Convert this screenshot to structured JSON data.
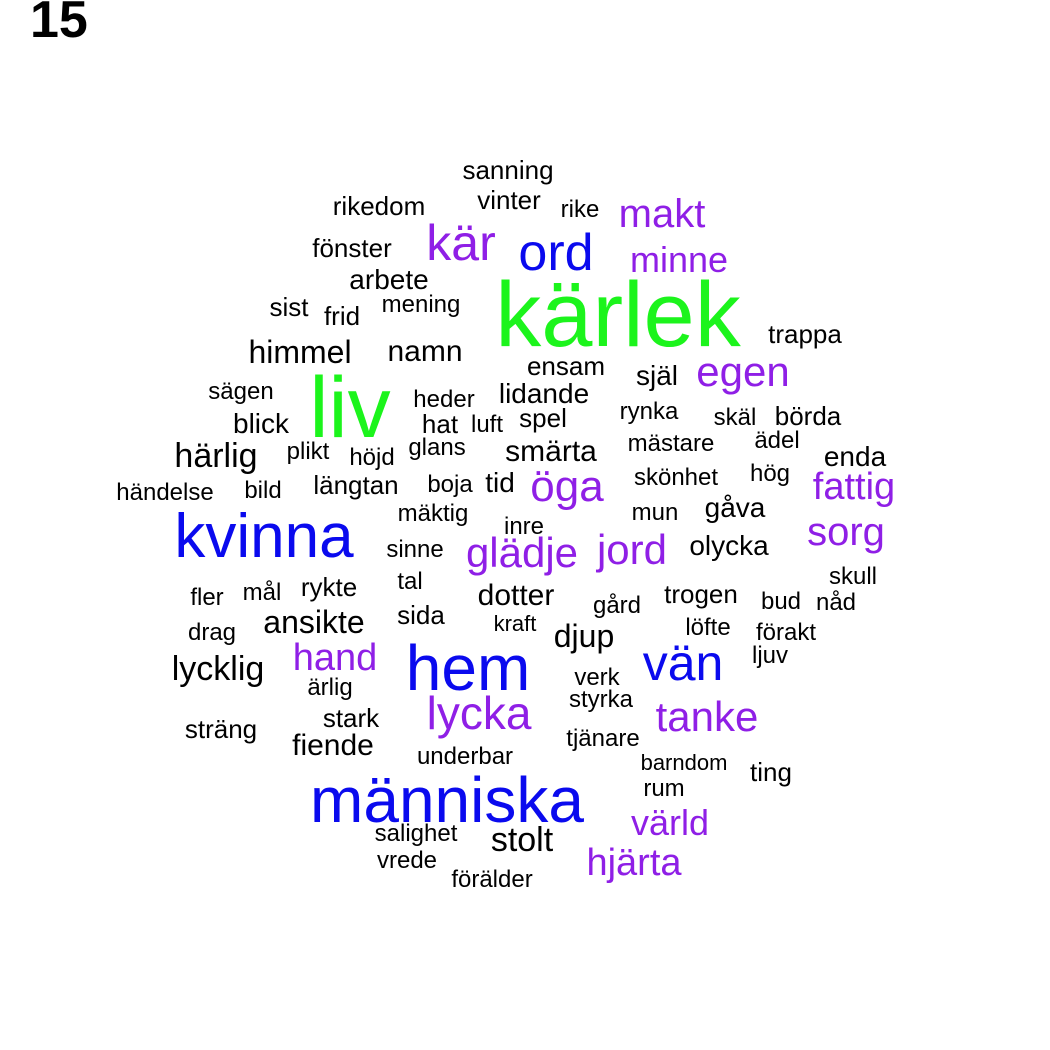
{
  "panel_number": "15",
  "colors": {
    "black": "#000000",
    "purple": "#8f1fe6",
    "blue": "#0a0aee",
    "green": "#1cf41c"
  },
  "words": [
    {
      "text": "kärlek",
      "color": "green"
    },
    {
      "text": "liv",
      "color": "green"
    },
    {
      "text": "människa",
      "color": "blue"
    },
    {
      "text": "kvinna",
      "color": "blue"
    },
    {
      "text": "hem",
      "color": "blue"
    },
    {
      "text": "vän",
      "color": "blue"
    },
    {
      "text": "ord",
      "color": "blue"
    },
    {
      "text": "kär",
      "color": "purple"
    },
    {
      "text": "makt",
      "color": "purple"
    },
    {
      "text": "minne",
      "color": "purple"
    },
    {
      "text": "egen",
      "color": "purple"
    },
    {
      "text": "öga",
      "color": "purple"
    },
    {
      "text": "fattig",
      "color": "purple"
    },
    {
      "text": "sorg",
      "color": "purple"
    },
    {
      "text": "glädje",
      "color": "purple"
    },
    {
      "text": "jord",
      "color": "purple"
    },
    {
      "text": "hand",
      "color": "purple"
    },
    {
      "text": "lycka",
      "color": "purple"
    },
    {
      "text": "tanke",
      "color": "purple"
    },
    {
      "text": "värld",
      "color": "purple"
    },
    {
      "text": "hjärta",
      "color": "purple"
    },
    {
      "text": "sanning",
      "color": "black"
    },
    {
      "text": "vinter",
      "color": "black"
    },
    {
      "text": "rikedom",
      "color": "black"
    },
    {
      "text": "rike",
      "color": "black"
    },
    {
      "text": "fönster",
      "color": "black"
    },
    {
      "text": "arbete",
      "color": "black"
    },
    {
      "text": "sist",
      "color": "black"
    },
    {
      "text": "mening",
      "color": "black"
    },
    {
      "text": "frid",
      "color": "black"
    },
    {
      "text": "trappa",
      "color": "black"
    },
    {
      "text": "himmel",
      "color": "black"
    },
    {
      "text": "namn",
      "color": "black"
    },
    {
      "text": "ensam",
      "color": "black"
    },
    {
      "text": "själ",
      "color": "black"
    },
    {
      "text": "sägen",
      "color": "black"
    },
    {
      "text": "heder",
      "color": "black"
    },
    {
      "text": "lidande",
      "color": "black"
    },
    {
      "text": "blick",
      "color": "black"
    },
    {
      "text": "hat",
      "color": "black"
    },
    {
      "text": "luft",
      "color": "black"
    },
    {
      "text": "spel",
      "color": "black"
    },
    {
      "text": "rynka",
      "color": "black"
    },
    {
      "text": "skäl",
      "color": "black"
    },
    {
      "text": "börda",
      "color": "black"
    },
    {
      "text": "härlig",
      "color": "black"
    },
    {
      "text": "plikt",
      "color": "black"
    },
    {
      "text": "höjd",
      "color": "black"
    },
    {
      "text": "glans",
      "color": "black"
    },
    {
      "text": "smärta",
      "color": "black"
    },
    {
      "text": "mästare",
      "color": "black"
    },
    {
      "text": "ädel",
      "color": "black"
    },
    {
      "text": "enda",
      "color": "black"
    },
    {
      "text": "händelse",
      "color": "black"
    },
    {
      "text": "bild",
      "color": "black"
    },
    {
      "text": "längtan",
      "color": "black"
    },
    {
      "text": "boja",
      "color": "black"
    },
    {
      "text": "tid",
      "color": "black"
    },
    {
      "text": "skönhet",
      "color": "black"
    },
    {
      "text": "hög",
      "color": "black"
    },
    {
      "text": "mäktig",
      "color": "black"
    },
    {
      "text": "gåva",
      "color": "black"
    },
    {
      "text": "mun",
      "color": "black"
    },
    {
      "text": "inre",
      "color": "black"
    },
    {
      "text": "sinne",
      "color": "black"
    },
    {
      "text": "olycka",
      "color": "black"
    },
    {
      "text": "skull",
      "color": "black"
    },
    {
      "text": "fler",
      "color": "black"
    },
    {
      "text": "mål",
      "color": "black"
    },
    {
      "text": "rykte",
      "color": "black"
    },
    {
      "text": "tal",
      "color": "black"
    },
    {
      "text": "dotter",
      "color": "black"
    },
    {
      "text": "trogen",
      "color": "black"
    },
    {
      "text": "bud",
      "color": "black"
    },
    {
      "text": "nåd",
      "color": "black"
    },
    {
      "text": "gård",
      "color": "black"
    },
    {
      "text": "ansikte",
      "color": "black"
    },
    {
      "text": "sida",
      "color": "black"
    },
    {
      "text": "kraft",
      "color": "black"
    },
    {
      "text": "djup",
      "color": "black"
    },
    {
      "text": "löfte",
      "color": "black"
    },
    {
      "text": "förakt",
      "color": "black"
    },
    {
      "text": "drag",
      "color": "black"
    },
    {
      "text": "ljuv",
      "color": "black"
    },
    {
      "text": "lycklig",
      "color": "black"
    },
    {
      "text": "verk",
      "color": "black"
    },
    {
      "text": "ärlig",
      "color": "black"
    },
    {
      "text": "styrka",
      "color": "black"
    },
    {
      "text": "stark",
      "color": "black"
    },
    {
      "text": "sträng",
      "color": "black"
    },
    {
      "text": "fiende",
      "color": "black"
    },
    {
      "text": "tjänare",
      "color": "black"
    },
    {
      "text": "underbar",
      "color": "black"
    },
    {
      "text": "barndom",
      "color": "black"
    },
    {
      "text": "ting",
      "color": "black"
    },
    {
      "text": "rum",
      "color": "black"
    },
    {
      "text": "salighet",
      "color": "black"
    },
    {
      "text": "stolt",
      "color": "black"
    },
    {
      "text": "vrede",
      "color": "black"
    },
    {
      "text": "förälder",
      "color": "black"
    }
  ]
}
